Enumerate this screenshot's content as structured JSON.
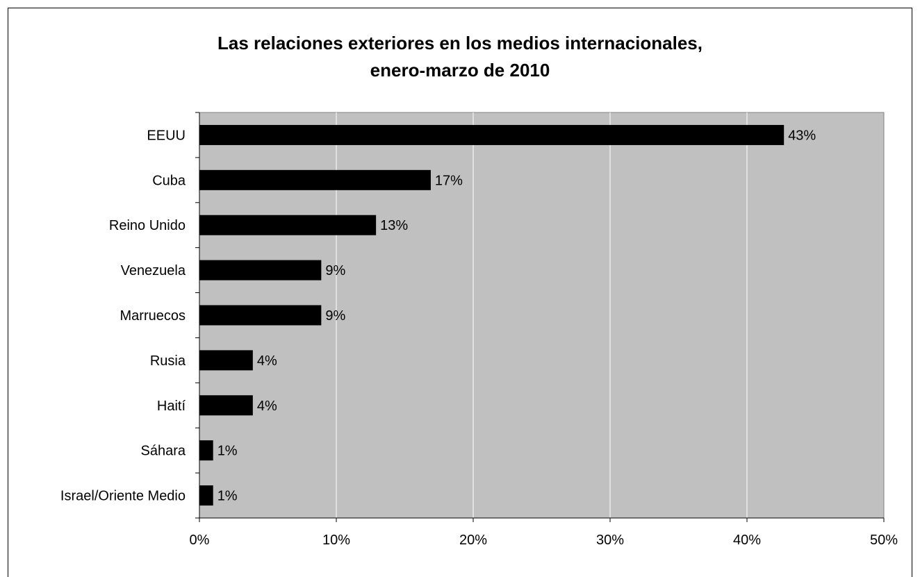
{
  "chart_data": {
    "type": "bar",
    "orientation": "horizontal",
    "title": "Las relaciones exteriores en los medios internacionales,",
    "subtitle": "enero-marzo de 2010",
    "categories": [
      "EEUU",
      "Cuba",
      "Reino Unido",
      "Venezuela",
      "Marruecos",
      "Rusia",
      "Haití",
      "Sáhara",
      "Israel/Oriente Medio"
    ],
    "values": [
      42.7,
      16.9,
      12.9,
      8.9,
      8.9,
      3.9,
      3.9,
      1.0,
      1.0
    ],
    "data_labels": [
      "43%",
      "17%",
      "13%",
      "9%",
      "9%",
      "4%",
      "4%",
      "1%",
      "1%"
    ],
    "xlim": [
      0,
      50
    ],
    "xticks": [
      0,
      10,
      20,
      30,
      40,
      50
    ],
    "xtick_labels": [
      "0%",
      "10%",
      "20%",
      "30%",
      "40%",
      "50%"
    ],
    "grid": "vertical",
    "legend": "none",
    "colors": {
      "plot_bg": "#c0c0c0",
      "bar": "#000000",
      "grid": "#ffffff",
      "axis": "#808080"
    }
  }
}
